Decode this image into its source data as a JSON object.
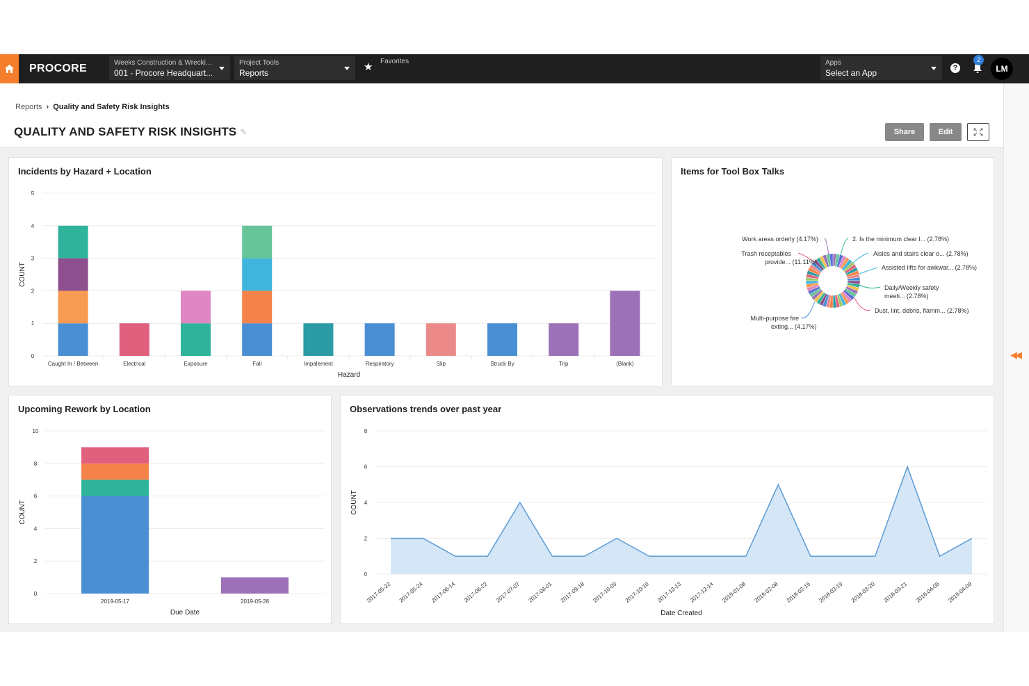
{
  "nav": {
    "logo_text": "PROCORE",
    "company_label": "Weeks Construction & Wrecki...",
    "project_value": "001 - Procore Headquart...",
    "tools_label": "Project Tools",
    "tools_value": "Reports",
    "favorites_label": "Favorites",
    "apps_label": "Apps",
    "apps_value": "Select an App",
    "notification_count": "2",
    "avatar_initials": "LM",
    "help_glyph": "?",
    "accent_color": "#f47e2c"
  },
  "breadcrumb": {
    "parent": "Reports",
    "current": "Quality and Safety Risk Insights"
  },
  "page": {
    "title": "QUALITY AND SAFETY RISK INSIGHTS",
    "share_label": "Share",
    "edit_label": "Edit"
  },
  "cards": {
    "incidents": "Incidents by Hazard + Location",
    "toolbox": "Items for Tool Box Talks",
    "rework": "Upcoming Rework by Location",
    "observations": "Observations trends over past year"
  },
  "chart_data": [
    {
      "id": "incidents",
      "type": "bar",
      "stacked": true,
      "xlabel": "Hazard",
      "ylabel": "COUNT",
      "ylim": [
        0,
        5
      ],
      "yticks": [
        0,
        1,
        2,
        3,
        4,
        5
      ],
      "grid": true,
      "categories": [
        "Caught In / Between",
        "Electrical",
        "Exposure",
        "Fall",
        "Impalement",
        "Respiratory",
        "Slip",
        "Struck By",
        "Trip",
        "(Blank)"
      ],
      "stacks": [
        [
          {
            "value": 1,
            "color": "#4a8fd4"
          },
          {
            "value": 1,
            "color": "#f79a52"
          },
          {
            "value": 1,
            "color": "#8e4f8e"
          },
          {
            "value": 1,
            "color": "#2fb39a"
          }
        ],
        [
          {
            "value": 1,
            "color": "#e0607e"
          }
        ],
        [
          {
            "value": 1,
            "color": "#2fb39a"
          },
          {
            "value": 1,
            "color": "#de87c2"
          }
        ],
        [
          {
            "value": 1,
            "color": "#4a8fd4"
          },
          {
            "value": 1,
            "color": "#f4834a"
          },
          {
            "value": 1,
            "color": "#3fb5de"
          },
          {
            "value": 1,
            "color": "#67c49a"
          }
        ],
        [
          {
            "value": 1,
            "color": "#2b9ca3"
          }
        ],
        [
          {
            "value": 1,
            "color": "#4a8fd4"
          }
        ],
        [
          {
            "value": 1,
            "color": "#ec8a8a"
          }
        ],
        [
          {
            "value": 1,
            "color": "#4a8fd4"
          }
        ],
        [
          {
            "value": 1,
            "color": "#9c71b8"
          }
        ],
        [
          {
            "value": 2,
            "color": "#9c71b8"
          }
        ]
      ]
    },
    {
      "id": "toolbox",
      "type": "pie",
      "donut": true,
      "labels": [
        {
          "text": "Work areas orderly (4.17%)",
          "side": "left"
        },
        {
          "text": "Trash receptables",
          "text2": "provide... (11.11%)",
          "side": "left"
        },
        {
          "text": "Multi-purpose fire",
          "text2": "exting... (4.17%)",
          "side": "left"
        },
        {
          "text": "2. Is the minimum clear l... (2.78%)",
          "side": "right"
        },
        {
          "text": "Aisles and stairs clear o... (2.78%)",
          "side": "right"
        },
        {
          "text": "Assisted lifts for awkwar... (2.78%)",
          "side": "right"
        },
        {
          "text": "Daily/Weekly safety",
          "text2": "meeti... (2.78%)",
          "side": "right"
        },
        {
          "text": "Dust, lint, debris, flamm... (2.78%)",
          "side": "right"
        }
      ],
      "slice_colors": [
        "#9c71b8",
        "#2fb39a",
        "#4a8fd4",
        "#f4834a",
        "#e0607e",
        "#3fb5de",
        "#de87c2",
        "#67c49a",
        "#f2c14e",
        "#8e4f8e",
        "#ec8a8a",
        "#2b9ca3",
        "#a3c86b",
        "#f79a52",
        "#5b6fd6"
      ]
    },
    {
      "id": "rework",
      "type": "bar",
      "stacked": true,
      "xlabel": "Due Date",
      "ylabel": "COUNT",
      "ylim": [
        0,
        10
      ],
      "yticks": [
        0,
        2,
        4,
        6,
        8,
        10
      ],
      "grid": true,
      "categories": [
        "2019-05-17",
        "2019-05-28"
      ],
      "stacks": [
        [
          {
            "value": 6,
            "color": "#4a8fd4"
          },
          {
            "value": 1,
            "color": "#2fb39a"
          },
          {
            "value": 1,
            "color": "#f4834a"
          },
          {
            "value": 1,
            "color": "#e0607e"
          }
        ],
        [
          {
            "value": 1,
            "color": "#9c71b8"
          }
        ]
      ]
    },
    {
      "id": "observations",
      "type": "area",
      "xlabel": "Date Created",
      "ylabel": "COUNT",
      "ylim": [
        0,
        8
      ],
      "yticks": [
        0,
        2,
        4,
        6,
        8
      ],
      "grid": true,
      "x": [
        "2017-05-22",
        "2017-05-24",
        "2017-06-14",
        "2017-06-22",
        "2017-07-07",
        "2017-08-01",
        "2017-09-18",
        "2017-10-09",
        "2017-10-10",
        "2017-12-13",
        "2017-12-14",
        "2018-01-08",
        "2018-02-08",
        "2018-02-15",
        "2018-03-19",
        "2018-03-20",
        "2018-03-21",
        "2018-04-05",
        "2018-04-09"
      ],
      "values": [
        2,
        2,
        1,
        1,
        4,
        1,
        1,
        2,
        1,
        1,
        1,
        1,
        5,
        1,
        1,
        1,
        6,
        1,
        2
      ],
      "line_color": "#5b9bd5",
      "fill_color": "#d5e6f6"
    }
  ]
}
